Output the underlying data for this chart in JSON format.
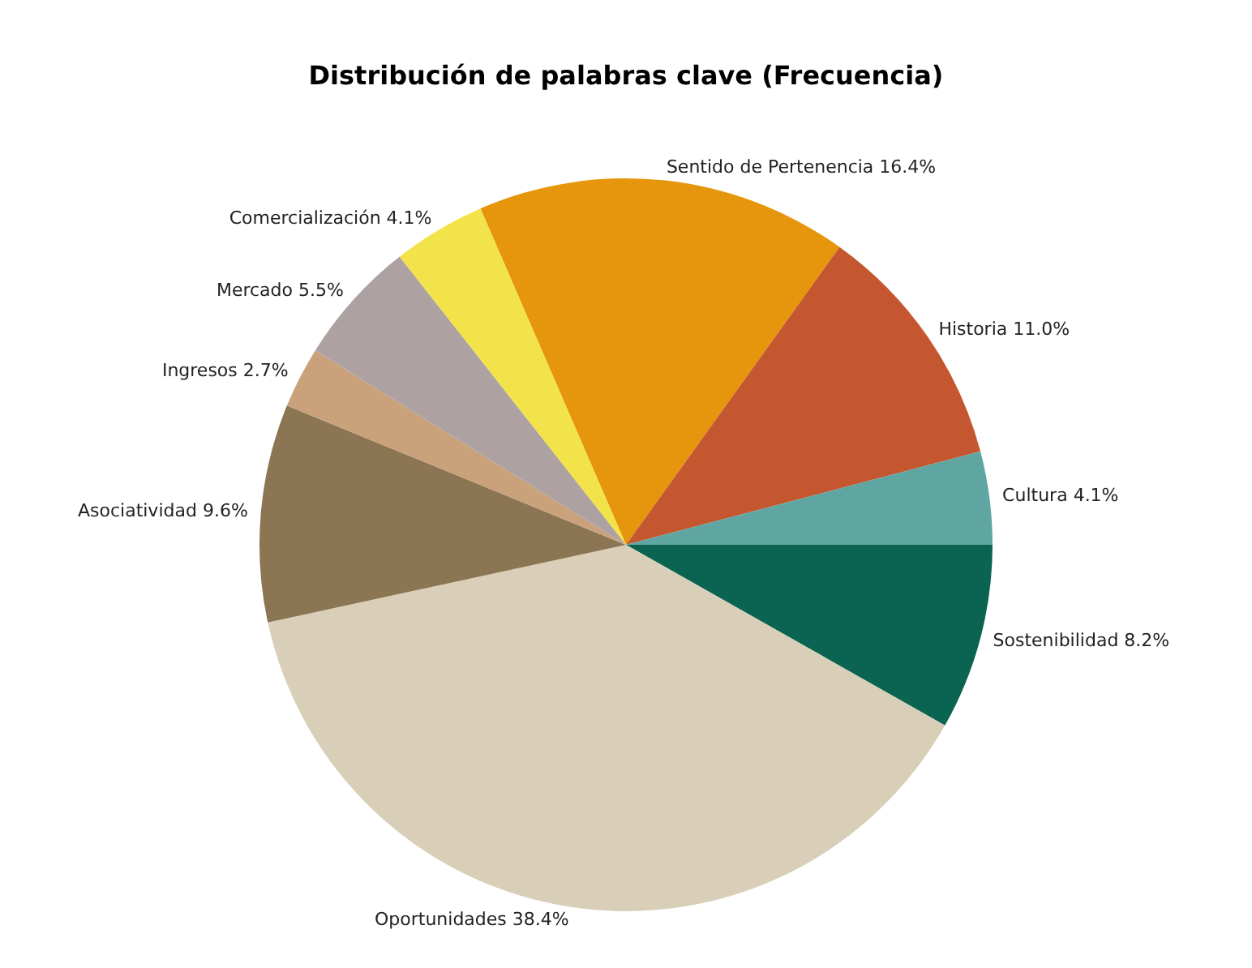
{
  "chart_data": {
    "type": "pie",
    "title": "Distribución de palabras clave (Frecuencia)",
    "categories": [
      "Sentido de Pertenencia",
      "Historia",
      "Cultura",
      "Sostenibilidad",
      "Oportunidades",
      "Asociatividad",
      "Ingresos",
      "Mercado",
      "Comercialización"
    ],
    "values": [
      16.4,
      11.0,
      4.1,
      8.2,
      38.4,
      9.6,
      2.7,
      5.5,
      4.1
    ],
    "value_labels": [
      "16.4%",
      "11.0%",
      "4.1%",
      "8.2%",
      "38.4%",
      "9.6%",
      "2.7%",
      "5.5%",
      "4.1%"
    ],
    "colors": [
      "#e5960c",
      "#c4572f",
      "#5fa6a2",
      "#0b6451",
      "#d9cfb8",
      "#8b7552",
      "#c9a17a",
      "#ada1a2",
      "#f2e34a"
    ]
  }
}
